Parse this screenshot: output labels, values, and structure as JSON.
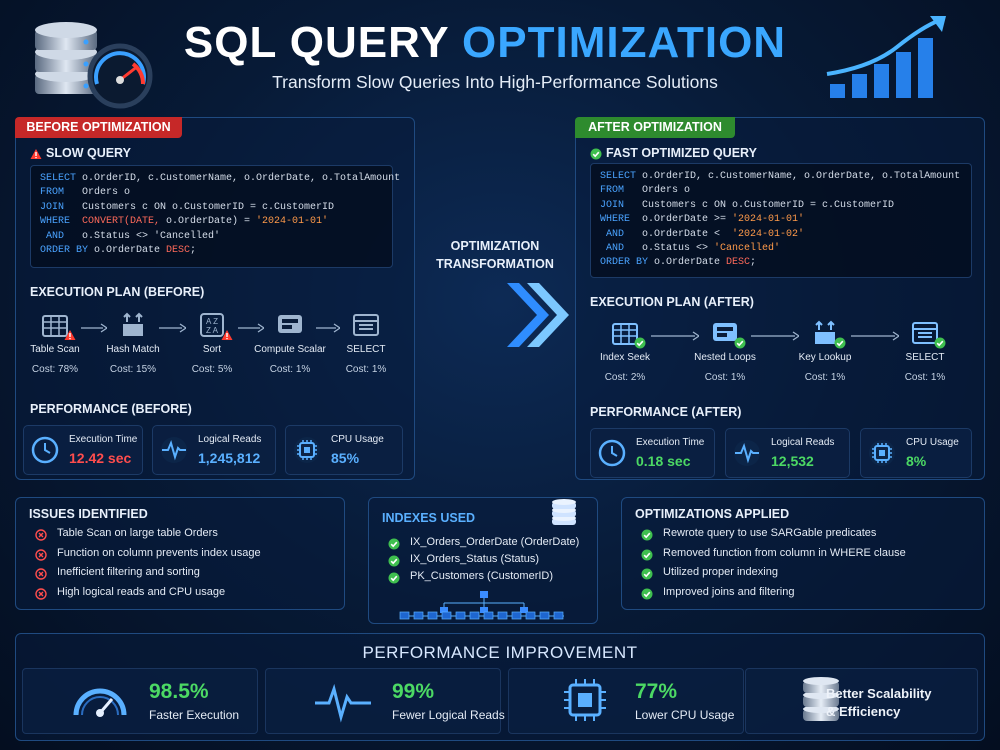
{
  "header": {
    "title_main": "SQL QUERY",
    "title_accent": "OPTIMIZATION",
    "subtitle": "Transform Slow Queries Into High-Performance Solutions"
  },
  "before": {
    "tab": "BEFORE OPTIMIZATION",
    "tab_color": "#c62828",
    "query_title": "SLOW QUERY",
    "query": [
      [
        {
          "text": "SELECT",
          "color": "#4aa3ff"
        },
        {
          "text": " o.OrderID, c.CustomerName, o.OrderDate, o.TotalAmount",
          "color": "#d6deea"
        }
      ],
      [
        {
          "text": "FROM",
          "color": "#4aa3ff"
        },
        {
          "text": "   Orders o",
          "color": "#d6deea"
        }
      ],
      [
        {
          "text": "JOIN",
          "color": "#4aa3ff"
        },
        {
          "text": "   Customers c ON o.CustomerID = c.CustomerID",
          "color": "#d6deea"
        }
      ],
      [
        {
          "text": "WHERE",
          "color": "#4aa3ff"
        },
        {
          "text": "  CONVERT(DATE,",
          "color": "#ff6a5a"
        },
        {
          "text": " o.OrderDate) = ",
          "color": "#d6deea"
        },
        {
          "text": "'2024-01-01'",
          "color": "#ff9a4a"
        }
      ],
      [
        {
          "text": " AND",
          "color": "#4aa3ff"
        },
        {
          "text": "   o.Status <> 'Cancelled'",
          "color": "#d6deea"
        }
      ],
      [
        {
          "text": "ORDER BY",
          "color": "#4aa3ff"
        },
        {
          "text": " o.OrderDate ",
          "color": "#d6deea"
        },
        {
          "text": "DESC",
          "color": "#ff6a5a"
        },
        {
          "text": ";",
          "color": "#d6deea"
        }
      ]
    ],
    "plan_title": "EXECUTION PLAN (BEFORE)",
    "steps": [
      {
        "label": "Table Scan",
        "cost": "Cost: 78%"
      },
      {
        "label": "Hash Match",
        "cost": "Cost: 15%"
      },
      {
        "label": "Sort",
        "cost": "Cost: 5%"
      },
      {
        "label": "Compute Scalar",
        "cost": "Cost: 1%"
      },
      {
        "label": "SELECT",
        "cost": "Cost: 1%"
      }
    ],
    "perf_title": "PERFORMANCE (BEFORE)",
    "metrics": [
      {
        "label": "Execution Time",
        "value": "12.42 sec",
        "color": "#ff4d4d"
      },
      {
        "label": "Logical Reads",
        "value": "1,245,812",
        "color": "#5ab0ff"
      },
      {
        "label": "CPU Usage",
        "value": "85%",
        "color": "#5ab0ff"
      }
    ]
  },
  "middle": {
    "label": "OPTIMIZATION TRANSFORMATION"
  },
  "after": {
    "tab": "AFTER OPTIMIZATION",
    "tab_color": "#2e8b2e",
    "query_title": "FAST OPTIMIZED QUERY",
    "query": [
      [
        {
          "text": "SELECT",
          "color": "#4aa3ff"
        },
        {
          "text": " o.OrderID, c.CustomerName, o.OrderDate, o.TotalAmount",
          "color": "#d6deea"
        }
      ],
      [
        {
          "text": "FROM",
          "color": "#4aa3ff"
        },
        {
          "text": "   Orders o",
          "color": "#d6deea"
        }
      ],
      [
        {
          "text": "JOIN",
          "color": "#4aa3ff"
        },
        {
          "text": "   Customers c ON o.CustomerID = c.CustomerID",
          "color": "#d6deea"
        }
      ],
      [
        {
          "text": "WHERE",
          "color": "#4aa3ff"
        },
        {
          "text": "  o.OrderDate >= ",
          "color": "#d6deea"
        },
        {
          "text": "'2024-01-01'",
          "color": "#ff9a4a"
        }
      ],
      [
        {
          "text": " AND",
          "color": "#4aa3ff"
        },
        {
          "text": "   o.OrderDate <  ",
          "color": "#d6deea"
        },
        {
          "text": "'2024-01-02'",
          "color": "#ff9a4a"
        }
      ],
      [
        {
          "text": " AND",
          "color": "#4aa3ff"
        },
        {
          "text": "   o.Status <> ",
          "color": "#d6deea"
        },
        {
          "text": "'Cancelled'",
          "color": "#ff9a4a"
        }
      ],
      [
        {
          "text": "ORDER BY",
          "color": "#4aa3ff"
        },
        {
          "text": " o.OrderDate ",
          "color": "#d6deea"
        },
        {
          "text": "DESC",
          "color": "#ff6a5a"
        },
        {
          "text": ";",
          "color": "#d6deea"
        }
      ]
    ],
    "plan_title": "EXECUTION PLAN (AFTER)",
    "steps": [
      {
        "label": "Index Seek",
        "cost": "Cost: 2%"
      },
      {
        "label": "Nested Loops",
        "cost": "Cost: 1%"
      },
      {
        "label": "Key Lookup",
        "cost": "Cost: 1%"
      },
      {
        "label": "SELECT",
        "cost": "Cost: 1%"
      }
    ],
    "perf_title": "PERFORMANCE (AFTER)",
    "metrics": [
      {
        "label": "Execution Time",
        "value": "0.18 sec",
        "color": "#4cd964"
      },
      {
        "label": "Logical Reads",
        "value": "12,532",
        "color": "#4cd964"
      },
      {
        "label": "CPU Usage",
        "value": "8%",
        "color": "#4cd964"
      }
    ]
  },
  "issues": {
    "title": "ISSUES IDENTIFIED",
    "items": [
      "Table Scan on large table Orders",
      "Function on column prevents index usage",
      "Inefficient filtering and sorting",
      "High logical reads and CPU usage"
    ]
  },
  "indexes": {
    "title": "INDEXES USED",
    "items": [
      "IX_Orders_OrderDate (OrderDate)",
      "IX_Orders_Status (Status)",
      "PK_Customers (CustomerID)"
    ]
  },
  "optimizations": {
    "title": "OPTIMIZATIONS APPLIED",
    "items": [
      "Rewrote query to use SARGable predicates",
      "Removed function from column in WHERE clause",
      "Utilized proper indexing",
      "Improved joins and filtering"
    ]
  },
  "improvement": {
    "title": "PERFORMANCE IMPROVEMENT",
    "items": [
      {
        "value": "98.5%",
        "label": "Faster Execution"
      },
      {
        "value": "99%",
        "label": "Fewer Logical Reads"
      },
      {
        "value": "77%",
        "label": "Lower CPU Usage"
      }
    ],
    "closing": "Better Scalability & Efficiency"
  }
}
